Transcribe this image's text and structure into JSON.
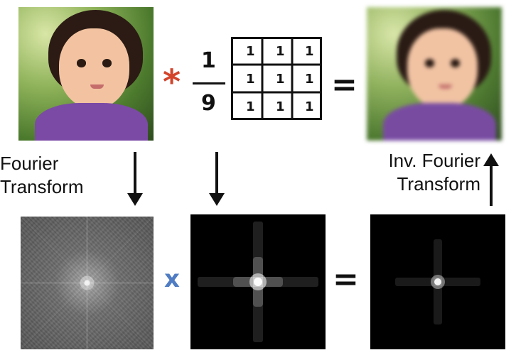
{
  "diagram": {
    "top": {
      "convolve_symbol": "*",
      "fraction": {
        "numerator": "1",
        "denominator": "9"
      },
      "kernel": [
        [
          "1",
          "1",
          "1"
        ],
        [
          "1",
          "1",
          "1"
        ],
        [
          "1",
          "1",
          "1"
        ]
      ],
      "equals": "="
    },
    "labels": {
      "fourier_line1": "Fourier",
      "fourier_line2": "Transform",
      "inv_line1": "Inv. Fourier",
      "inv_line2": "Transform"
    },
    "bottom": {
      "multiply_symbol": "x",
      "equals": "="
    },
    "colors": {
      "convolve": "#d2442b",
      "multiply": "#4f7cc3"
    }
  }
}
